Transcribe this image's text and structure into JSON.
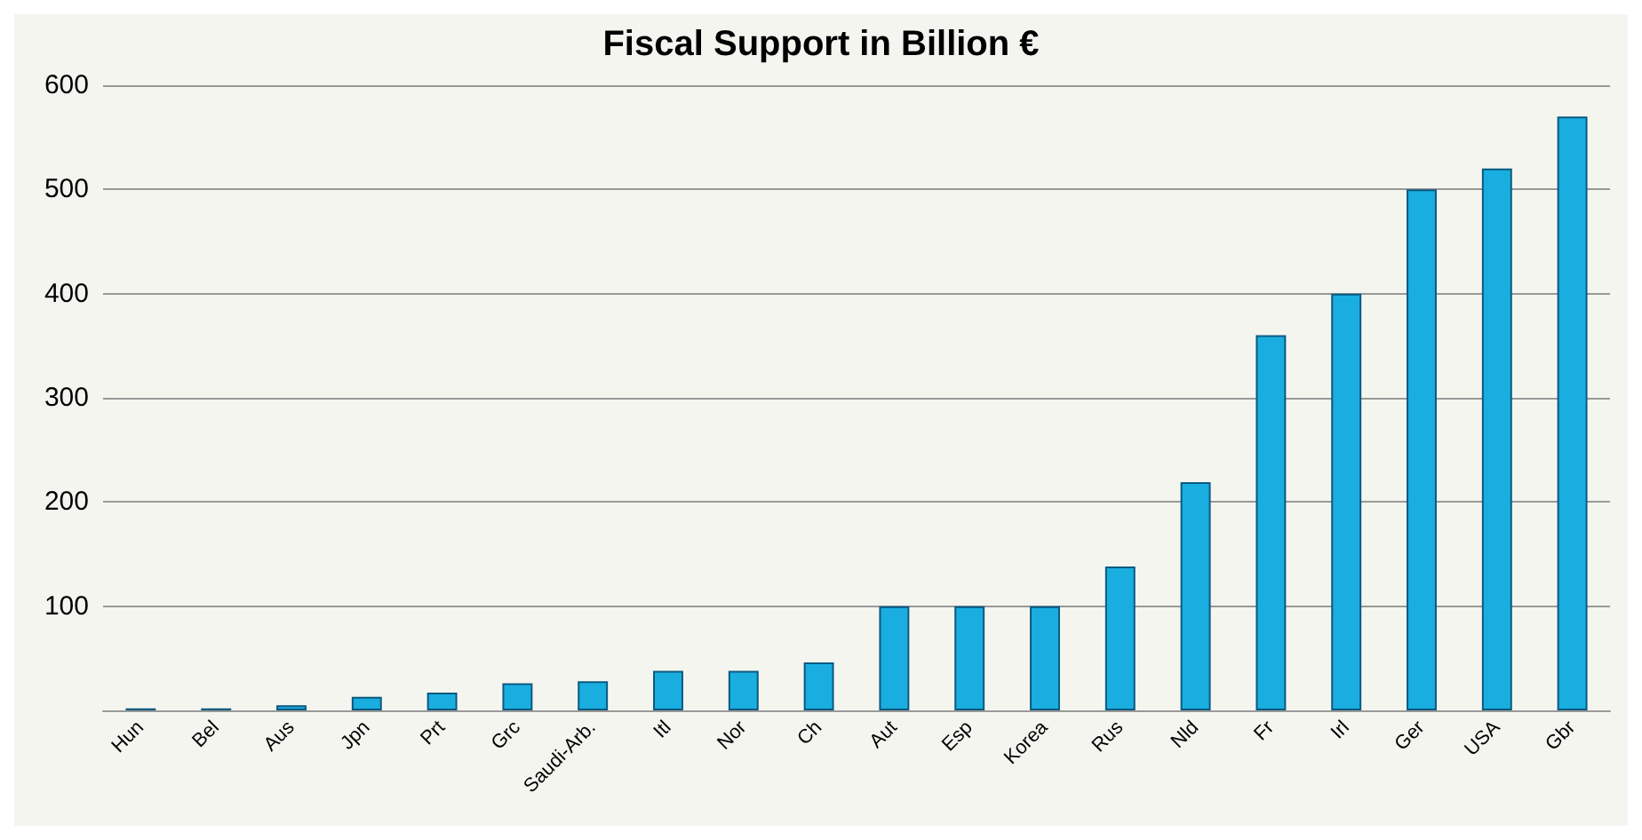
{
  "chart_data": {
    "type": "bar",
    "title": "Fiscal Support in Billion €",
    "categories": [
      "Hun",
      "Bel",
      "Aus",
      "Jpn",
      "Prt",
      "Grc",
      "Saudi-Arb.",
      "Itl",
      "Nor",
      "Ch",
      "Aut",
      "Esp",
      "Korea",
      "Rus",
      "Nld",
      "Fr",
      "Irl",
      "Ger",
      "USA",
      "Gbr"
    ],
    "values": [
      2,
      2,
      5,
      13,
      17,
      26,
      28,
      38,
      38,
      46,
      100,
      100,
      100,
      138,
      219,
      360,
      400,
      500,
      520,
      570
    ],
    "color": "#1aaee0",
    "ylim": [
      0,
      600
    ],
    "yticks": [
      100,
      200,
      300,
      400,
      500,
      600
    ],
    "grid": "y"
  }
}
